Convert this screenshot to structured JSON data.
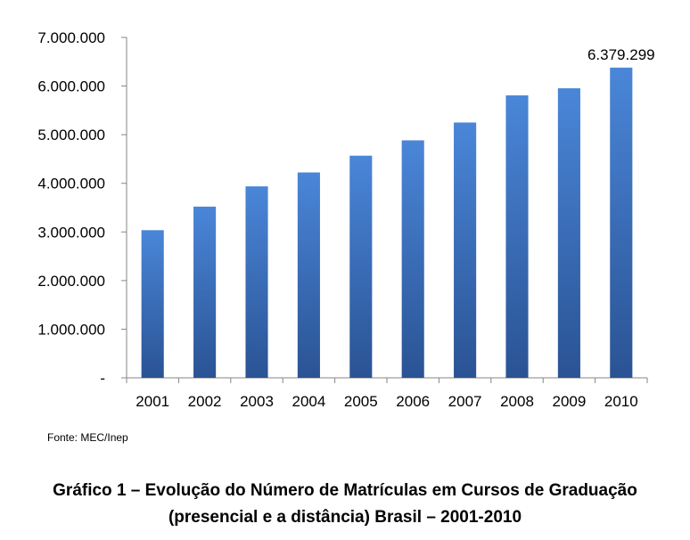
{
  "chart_data": {
    "type": "bar",
    "categories": [
      "2001",
      "2002",
      "2003",
      "2004",
      "2005",
      "2006",
      "2007",
      "2008",
      "2009",
      "2010"
    ],
    "values": [
      3036113,
      3520627,
      3936933,
      4223344,
      4567798,
      4883852,
      5250147,
      5808017,
      5954021,
      6379299
    ],
    "ylim": [
      0,
      7000000
    ],
    "yticks": [
      0,
      1000000,
      2000000,
      3000000,
      4000000,
      5000000,
      6000000,
      7000000
    ],
    "ytick_labels": [
      "-",
      "1.000.000",
      "2.000.000",
      "3.000.000",
      "4.000.000",
      "5.000.000",
      "6.000.000",
      "7.000.000"
    ],
    "data_labels": {
      "2010": "6.379.299"
    },
    "grid": false,
    "bar_color_top": "#4a86d8",
    "bar_color_bottom": "#2a5394"
  },
  "source": "Fonte: MEC/Inep",
  "caption": {
    "line1": "Gráfico 1 – Evolução do Número de Matrículas em Cursos de Graduação",
    "line2": "(presencial e a distância) Brasil – 2001-2010"
  }
}
